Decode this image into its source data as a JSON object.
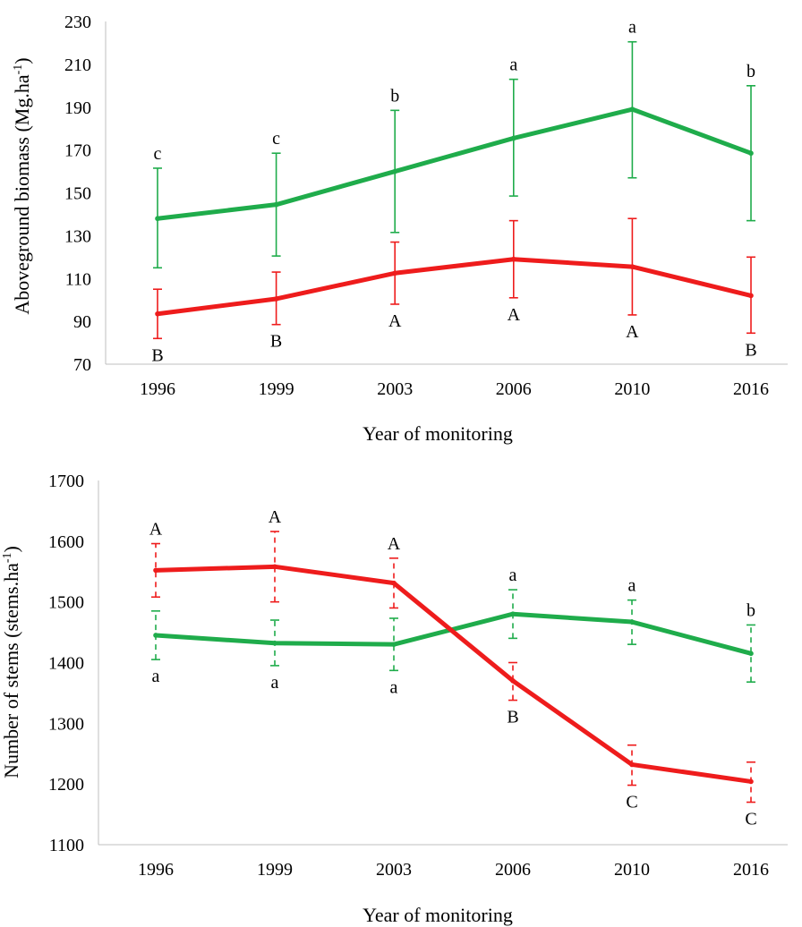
{
  "colors": {
    "green": "#1fac4b",
    "red": "#ee1c1c",
    "axis": "#bfbfbf"
  },
  "chart_data": [
    {
      "type": "line",
      "xlabel": "Year of monitoring",
      "ylabel": "Aboveground biomass (Mg.ha",
      "ylabel_sup": "-1",
      "ylabel_close": ")",
      "categories": [
        "1996",
        "1999",
        "2003",
        "2006",
        "2010",
        "2016"
      ],
      "ylim": [
        70,
        230
      ],
      "yticks": [
        "70",
        "90",
        "110",
        "130",
        "150",
        "170",
        "190",
        "210",
        "230"
      ],
      "grid": false,
      "series": [
        {
          "color": "#1fac4b",
          "error_style": "solid",
          "values": [
            138,
            144.5,
            160,
            175.5,
            189,
            168.5
          ],
          "error_low": [
            115,
            120.5,
            131.5,
            148.5,
            157,
            137
          ],
          "error_high": [
            161.5,
            168.5,
            188.5,
            203,
            220.5,
            200
          ],
          "labels": [
            "c",
            "c",
            "b",
            "a",
            "a",
            "b"
          ],
          "label_position": "above"
        },
        {
          "color": "#ee1c1c",
          "error_style": "solid",
          "values": [
            93.5,
            100.5,
            112.5,
            119,
            115.5,
            102
          ],
          "error_low": [
            82,
            88.5,
            98,
            101,
            93,
            84.5
          ],
          "error_high": [
            105,
            113,
            127,
            137,
            138,
            120
          ],
          "labels": [
            "B",
            "B",
            "A",
            "A",
            "A",
            "B"
          ],
          "label_position": "below"
        }
      ]
    },
    {
      "type": "line",
      "xlabel": "Year of monitoring",
      "ylabel": "Number of stems (stems.ha",
      "ylabel_sup": "-1",
      "ylabel_close": ")",
      "categories": [
        "1996",
        "1999",
        "2003",
        "2006",
        "2010",
        "2016"
      ],
      "ylim": [
        1100,
        1700
      ],
      "yticks": [
        "1100",
        "1200",
        "1300",
        "1400",
        "1500",
        "1600",
        "1700"
      ],
      "grid": false,
      "series": [
        {
          "color": "#1fac4b",
          "error_style": "dashed",
          "values": [
            1445,
            1432,
            1430,
            1480,
            1467,
            1415
          ],
          "error_low": [
            1405,
            1395,
            1387,
            1440,
            1430,
            1368
          ],
          "error_high": [
            1485,
            1470,
            1473,
            1520,
            1503,
            1462
          ],
          "labels": [
            "a",
            "a",
            "a",
            "a",
            "a",
            "b"
          ],
          "label_position": [
            "below",
            "below",
            "below",
            "above",
            "above",
            "above"
          ]
        },
        {
          "color": "#ee1c1c",
          "error_style": "dashed",
          "values": [
            1552,
            1558,
            1531,
            1370,
            1232,
            1204
          ],
          "error_low": [
            1508,
            1500,
            1490,
            1338,
            1198,
            1170
          ],
          "error_high": [
            1596,
            1616,
            1572,
            1400,
            1264,
            1236
          ],
          "labels": [
            "A",
            "A",
            "A",
            "B",
            "C",
            "C"
          ],
          "label_position": [
            "above",
            "above",
            "above",
            "below",
            "below",
            "below"
          ]
        }
      ]
    }
  ]
}
